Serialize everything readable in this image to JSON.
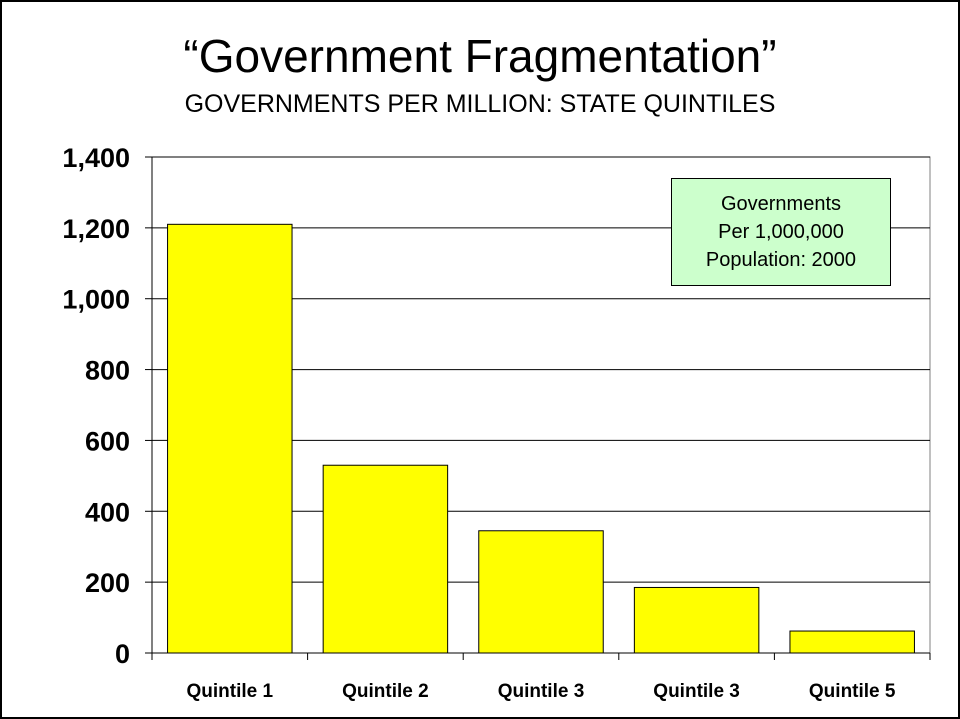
{
  "slide": {
    "title": "“Government Fragmentation”",
    "subtitle": "GOVERNMENTS PER MILLION: STATE QUINTILES"
  },
  "legend": {
    "lines": [
      "Governments",
      "Per 1,000,000",
      "Population: 2000"
    ]
  },
  "colors": {
    "bar_fill": "#ffff00",
    "legend_fill": "#ccffcc"
  },
  "chart_data": {
    "type": "bar",
    "title": "“Government Fragmentation”",
    "subtitle": "GOVERNMENTS PER MILLION: STATE QUINTILES",
    "categories": [
      "Quintile 1",
      "Quintile 2",
      "Quintile 3",
      "Quintile 3",
      "Quintile 5"
    ],
    "values": [
      1210,
      530,
      345,
      185,
      62
    ],
    "ylim": [
      0,
      1400
    ],
    "yticks": [
      0,
      200,
      400,
      600,
      800,
      1000,
      1200,
      1400
    ],
    "ytick_labels": [
      "0",
      "200",
      "400",
      "600",
      "800",
      "1,000",
      "1,200",
      "1,400"
    ],
    "grid": true,
    "legend_position": "top-right"
  }
}
